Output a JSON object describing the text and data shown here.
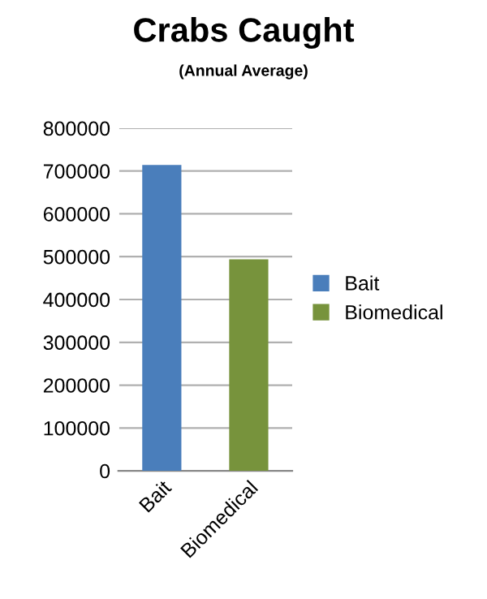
{
  "chart_data": {
    "type": "bar",
    "title": "Crabs Caught",
    "subtitle": "(Annual Average)",
    "categories": [
      "Bait",
      "Biomedical"
    ],
    "series": [
      {
        "name": "Bait",
        "color": "#4a7ebb",
        "values": [
          714000,
          null
        ]
      },
      {
        "name": "Biomedical",
        "color": "#77933c",
        "values": [
          null,
          494000
        ]
      }
    ],
    "ylim": [
      0,
      800000
    ],
    "yticks": [
      0,
      100000,
      200000,
      300000,
      400000,
      500000,
      600000,
      700000,
      800000
    ],
    "grid": "y",
    "legend": "right"
  }
}
